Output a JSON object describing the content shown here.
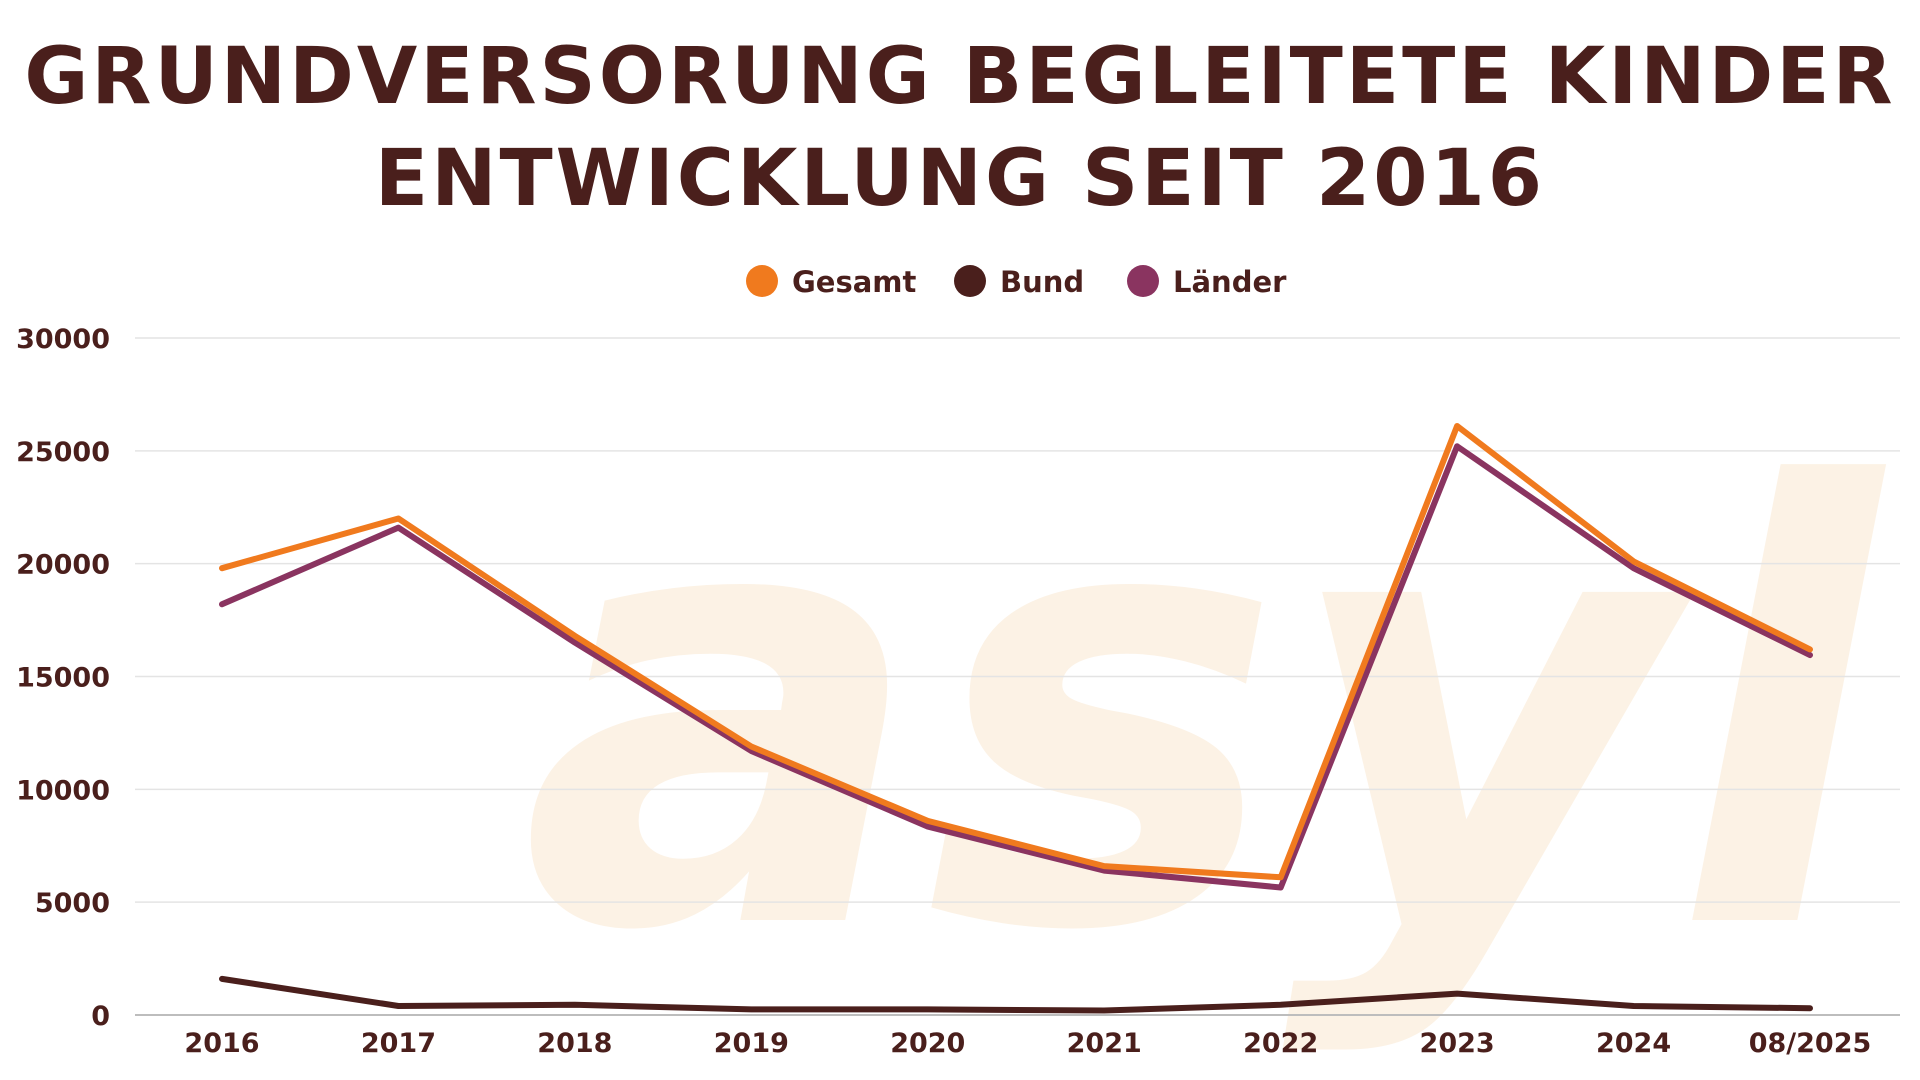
{
  "chart_data": {
    "type": "line",
    "title": [
      "GRUNDVERSORUNG BEGLEITETE KINDER",
      "ENTWICKLUNG SEIT 2016"
    ],
    "watermark": "asyl",
    "categories": [
      "2016",
      "2017",
      "2018",
      "2019",
      "2020",
      "2021",
      "2022",
      "2023",
      "2024",
      "08/2025"
    ],
    "series": [
      {
        "name": "Gesamt",
        "color": "#f07a1e",
        "values": [
          19800,
          22000,
          16800,
          11900,
          8600,
          6600,
          6100,
          26100,
          20100,
          16200
        ]
      },
      {
        "name": "Bund",
        "color": "#4a1f1c",
        "values": [
          1600,
          400,
          450,
          250,
          250,
          200,
          450,
          950,
          400,
          300
        ]
      },
      {
        "name": "Länder",
        "color": "#8a3460",
        "values": [
          18200,
          21600,
          16500,
          11700,
          8350,
          6400,
          5650,
          25200,
          19800,
          15950
        ]
      }
    ],
    "yticks": [
      0,
      5000,
      10000,
      15000,
      20000,
      25000,
      30000
    ],
    "ylim": [
      0,
      30000
    ],
    "grid": true,
    "legend_position": "top-center",
    "colors": {
      "text": "#4a1f1c",
      "grid": "#e4e4e4",
      "axis": "#bdbdbd",
      "watermark": "#fbeedd"
    }
  }
}
